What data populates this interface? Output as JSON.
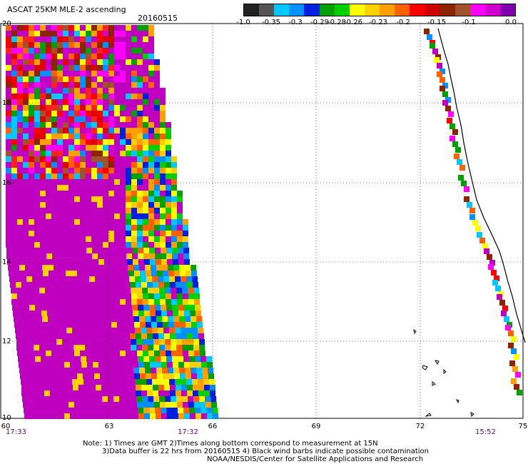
{
  "header": {
    "title": "ASCAT 25KM MLE-2 ascending",
    "date": "20160515"
  },
  "color_scale": {
    "labels": [
      "-1.0",
      "-0.35",
      "-0.3",
      "-0.29",
      "-0.28",
      "-0.26",
      "-0.23",
      "-0.2",
      "-0.15",
      "-0.1",
      "0.0"
    ],
    "colors": [
      "#222222",
      "#555555",
      "#00c8ff",
      "#0090ff",
      "#0020e0",
      "#00a000",
      "#00d000",
      "#ffff00",
      "#ffd000",
      "#ffa000",
      "#ff6000",
      "#ff0000",
      "#d00000",
      "#8b2500",
      "#a0522d",
      "#ff00ff",
      "#d000d0",
      "#8000b0"
    ]
  },
  "axes": {
    "y_ticks": [
      "20",
      "18",
      "16",
      "14",
      "12",
      "10"
    ],
    "x_ticks": [
      "60",
      "63",
      "66",
      "69",
      "72",
      "75"
    ],
    "lat_range": [
      10,
      20
    ],
    "lon_range": [
      60,
      75
    ]
  },
  "pass_times": {
    "left_start": "17:33",
    "left_end": "17:32",
    "right": "15:52"
  },
  "notes": {
    "line1": "Note: 1) Times are GMT  2)Times along bottom correspond to measurement at 15N",
    "line2": "3)Data buffer is 22 hrs from 20160515  4) Black wind barbs indicate possible contamination",
    "line3": "NOAA/NESDIS/Center for Satellite Applications and Research"
  }
}
